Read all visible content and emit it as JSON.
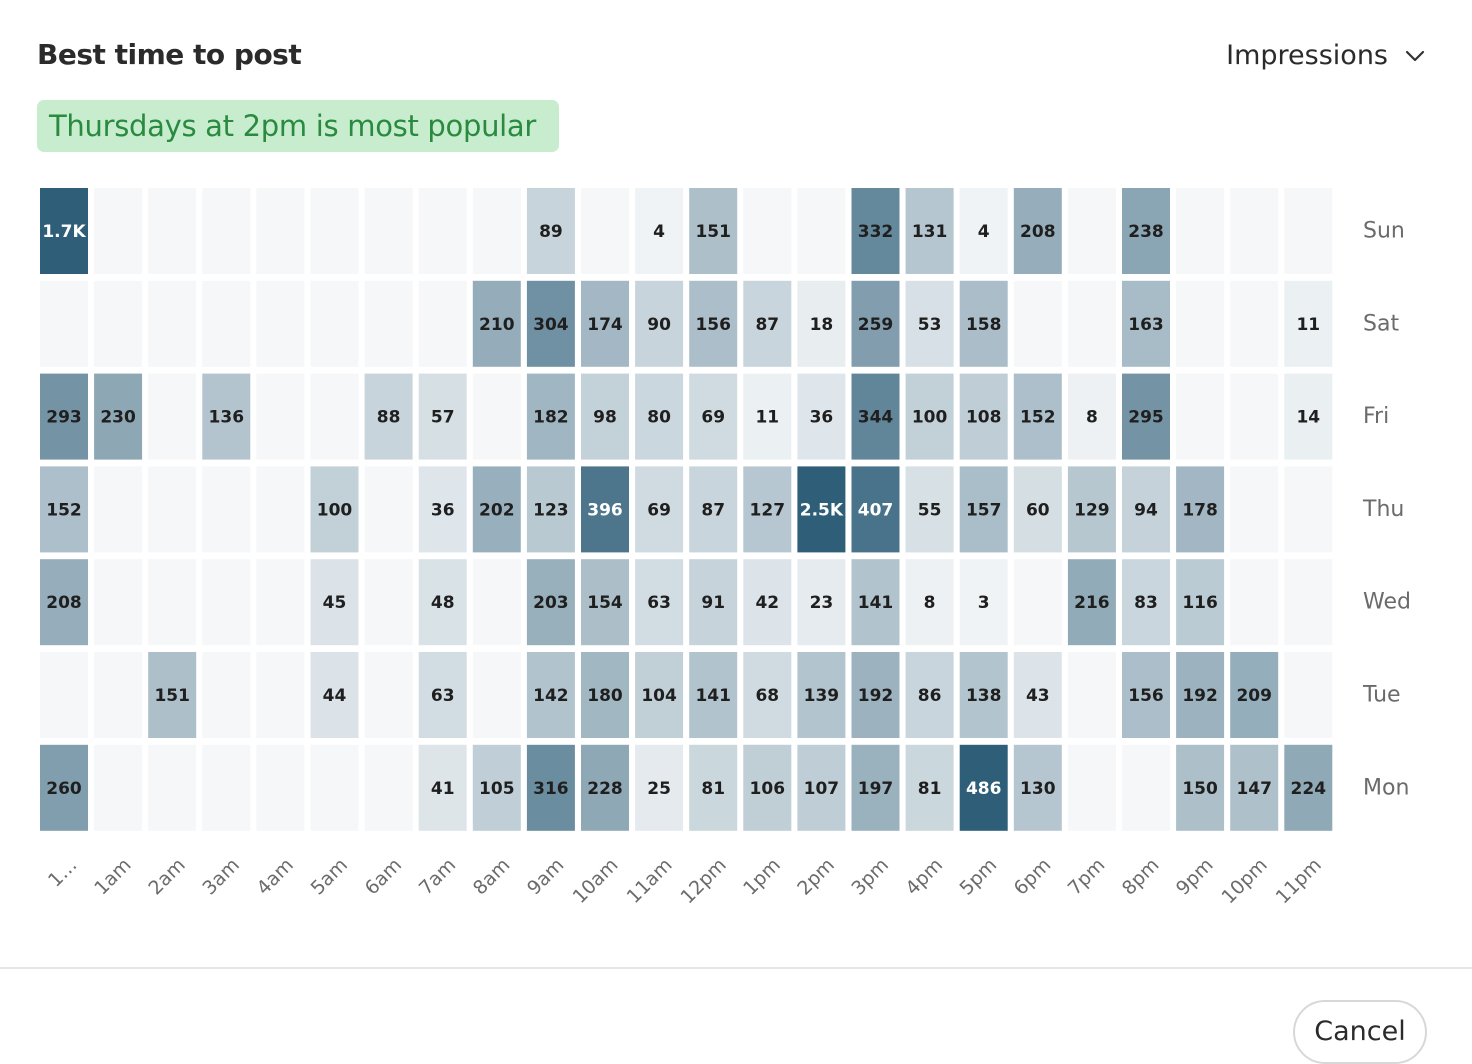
{
  "header": {
    "title": "Best time to post",
    "metric_selected": "Impressions",
    "metric_icon": "chevron-down-icon"
  },
  "insight": {
    "text": "Thursdays at 2pm is most popular",
    "bg_color": "#c7ecce",
    "text_color": "#2a8a3f"
  },
  "footer": {
    "cancel_label": "Cancel"
  },
  "chart_data": {
    "type": "heatmap",
    "title": "",
    "x_labels": [
      "1…",
      "1am",
      "2am",
      "3am",
      "4am",
      "5am",
      "6am",
      "7am",
      "8am",
      "9am",
      "10am",
      "11am",
      "12pm",
      "1pm",
      "2pm",
      "3pm",
      "4pm",
      "5pm",
      "6pm",
      "7pm",
      "8pm",
      "9pm",
      "10pm",
      "11pm"
    ],
    "rows": [
      {
        "day": "Sun",
        "labels": [
          "1.7K",
          "",
          "",
          "",
          "",
          "",
          "",
          "",
          "",
          "89",
          "",
          "4",
          "151",
          "",
          "",
          "332",
          "131",
          "4",
          "208",
          "",
          "238",
          "",
          "",
          ""
        ],
        "values": [
          1700,
          0,
          0,
          0,
          0,
          0,
          0,
          0,
          0,
          89,
          0,
          4,
          151,
          0,
          0,
          332,
          131,
          4,
          208,
          0,
          238,
          0,
          0,
          0
        ]
      },
      {
        "day": "Sat",
        "labels": [
          "",
          "",
          "",
          "",
          "",
          "",
          "",
          "",
          "210",
          "304",
          "174",
          "90",
          "156",
          "87",
          "18",
          "259",
          "53",
          "158",
          "",
          "",
          "163",
          "",
          "",
          "11"
        ],
        "values": [
          0,
          0,
          0,
          0,
          0,
          0,
          0,
          0,
          210,
          304,
          174,
          90,
          156,
          87,
          18,
          259,
          53,
          158,
          0,
          0,
          163,
          0,
          0,
          11
        ]
      },
      {
        "day": "Fri",
        "labels": [
          "293",
          "230",
          "",
          "136",
          "",
          "",
          "88",
          "57",
          "",
          "182",
          "98",
          "80",
          "69",
          "11",
          "36",
          "344",
          "100",
          "108",
          "152",
          "8",
          "295",
          "",
          "",
          "14"
        ],
        "values": [
          293,
          230,
          0,
          136,
          0,
          0,
          88,
          57,
          0,
          182,
          98,
          80,
          69,
          11,
          36,
          344,
          100,
          108,
          152,
          8,
          295,
          0,
          0,
          14
        ]
      },
      {
        "day": "Thu",
        "labels": [
          "152",
          "",
          "",
          "",
          "",
          "100",
          "",
          "36",
          "202",
          "123",
          "396",
          "69",
          "87",
          "127",
          "2.5K",
          "407",
          "55",
          "157",
          "60",
          "129",
          "94",
          "178",
          "",
          ""
        ],
        "values": [
          152,
          0,
          0,
          0,
          0,
          100,
          0,
          36,
          202,
          123,
          396,
          69,
          87,
          127,
          2500,
          407,
          55,
          157,
          60,
          129,
          94,
          178,
          0,
          0
        ]
      },
      {
        "day": "Wed",
        "labels": [
          "208",
          "",
          "",
          "",
          "",
          "45",
          "",
          "48",
          "",
          "203",
          "154",
          "63",
          "91",
          "42",
          "23",
          "141",
          "8",
          "3",
          "",
          "216",
          "83",
          "116",
          "",
          ""
        ],
        "values": [
          208,
          0,
          0,
          0,
          0,
          45,
          0,
          48,
          0,
          203,
          154,
          63,
          91,
          42,
          23,
          141,
          8,
          3,
          0,
          216,
          83,
          116,
          0,
          0
        ]
      },
      {
        "day": "Tue",
        "labels": [
          "",
          "",
          "151",
          "",
          "",
          "44",
          "",
          "63",
          "",
          "142",
          "180",
          "104",
          "141",
          "68",
          "139",
          "192",
          "86",
          "138",
          "43",
          "",
          "156",
          "192",
          "209",
          ""
        ],
        "values": [
          0,
          0,
          151,
          0,
          0,
          44,
          0,
          63,
          0,
          142,
          180,
          104,
          141,
          68,
          139,
          192,
          86,
          138,
          43,
          0,
          156,
          192,
          209,
          0
        ]
      },
      {
        "day": "Mon",
        "labels": [
          "260",
          "",
          "",
          "",
          "",
          "",
          "",
          "41",
          "105",
          "316",
          "228",
          "25",
          "81",
          "106",
          "107",
          "197",
          "81",
          "486",
          "130",
          "",
          "",
          "150",
          "147",
          "224"
        ],
        "values": [
          260,
          0,
          0,
          0,
          0,
          0,
          0,
          41,
          105,
          316,
          228,
          25,
          81,
          106,
          107,
          197,
          81,
          486,
          130,
          0,
          0,
          150,
          147,
          224
        ]
      }
    ],
    "color_scale": {
      "empty": "#f6f7f8",
      "low": "#f2f5f7",
      "high": "#2e5e78"
    },
    "legend": "none",
    "grid": false
  }
}
